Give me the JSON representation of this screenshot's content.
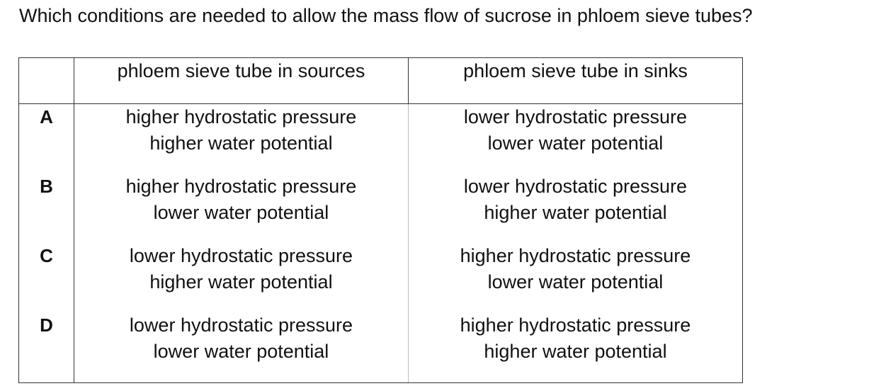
{
  "question": "Which conditions are needed to allow the mass flow of sucrose in phloem sieve tubes?",
  "table": {
    "headers": [
      "",
      "phloem sieve tube in sources",
      "phloem sieve tube in sinks"
    ],
    "rows": [
      {
        "letter": "A",
        "source": [
          "higher hydrostatic pressure",
          "higher water potential"
        ],
        "sink": [
          "lower hydrostatic pressure",
          "lower water potential"
        ]
      },
      {
        "letter": "B",
        "source": [
          "higher hydrostatic pressure",
          "lower water potential"
        ],
        "sink": [
          "lower hydrostatic pressure",
          "higher water potential"
        ]
      },
      {
        "letter": "C",
        "source": [
          "lower hydrostatic pressure",
          "higher water potential"
        ],
        "sink": [
          "higher hydrostatic pressure",
          "lower water potential"
        ]
      },
      {
        "letter": "D",
        "source": [
          "lower hydrostatic pressure",
          "lower water potential"
        ],
        "sink": [
          "higher hydrostatic pressure",
          "higher water potential"
        ]
      }
    ]
  }
}
